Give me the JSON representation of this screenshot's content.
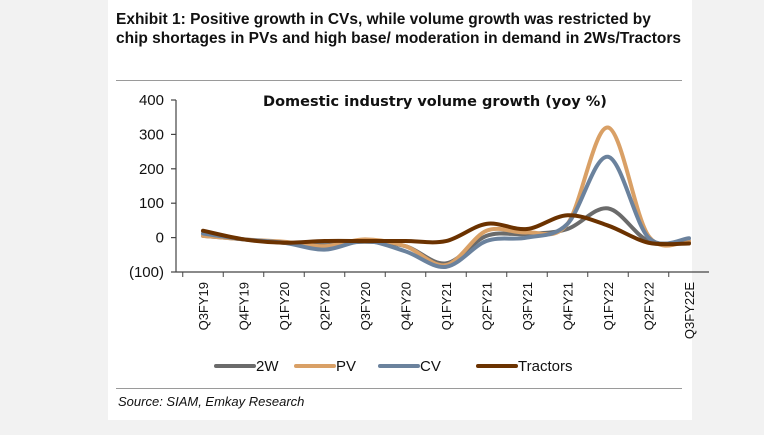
{
  "exhibit": {
    "title": "Exhibit 1: Positive growth in CVs, while volume growth was restricted by chip shortages in PVs and high base/ moderation in demand in 2Ws/Tractors",
    "source": "Source: SIAM, Emkay Research"
  },
  "chart_data": {
    "type": "line",
    "title": "Domestic industry volume growth (yoy %)",
    "xlabel": "",
    "ylabel": "",
    "ylim": [
      -100,
      400
    ],
    "yticks": [
      -100,
      0,
      100,
      200,
      300,
      400
    ],
    "ytick_labels": [
      "(100)",
      "0",
      "100",
      "200",
      "300",
      "400"
    ],
    "categories": [
      "Q3FY19",
      "Q4FY19",
      "Q1FY20",
      "Q2FY20",
      "Q3FY20",
      "Q4FY20",
      "Q1FY21",
      "Q2FY21",
      "Q3FY21",
      "Q4FY21",
      "Q1FY22",
      "Q2FY22",
      "Q3FY22E"
    ],
    "series": [
      {
        "name": "2W",
        "color": "#6b6b6b",
        "values": [
          5,
          -5,
          -15,
          -22,
          -12,
          -25,
          -75,
          5,
          10,
          25,
          85,
          -10,
          -12
        ]
      },
      {
        "name": "PV",
        "color": "#d9a066",
        "values": [
          5,
          -5,
          -12,
          -25,
          -5,
          -25,
          -80,
          20,
          15,
          40,
          320,
          5,
          -10
        ]
      },
      {
        "name": "CV",
        "color": "#6b829d",
        "values": [
          12,
          -5,
          -15,
          -35,
          -10,
          -40,
          -85,
          -10,
          0,
          40,
          235,
          0,
          -2
        ]
      },
      {
        "name": "Tractors",
        "color": "#6b3200",
        "values": [
          20,
          -5,
          -15,
          -10,
          -10,
          -10,
          -10,
          40,
          25,
          65,
          35,
          -15,
          -17
        ]
      }
    ],
    "legend": "bottom",
    "grid": false
  }
}
